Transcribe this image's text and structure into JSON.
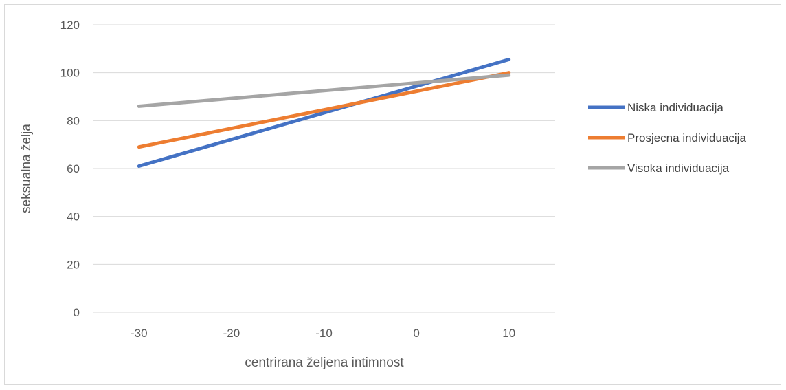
{
  "chart_data": {
    "type": "line",
    "title": "",
    "xlabel": "centrirana željena intimnost",
    "ylabel": "seksualna želja",
    "x_ticks": [
      "-30",
      "-20",
      "-10",
      "0",
      "10"
    ],
    "y_ticks": [
      "0",
      "20",
      "40",
      "60",
      "80",
      "100",
      "120"
    ],
    "xlim": [
      -35,
      15
    ],
    "ylim": [
      0,
      120
    ],
    "grid": "horizontal",
    "legend_position": "right",
    "series": [
      {
        "name": "Niska individuacija",
        "color": "#4472C4",
        "x": [
          -30,
          10
        ],
        "y": [
          61,
          105.5
        ]
      },
      {
        "name": "Prosjecna individuacija",
        "color": "#ED7D31",
        "x": [
          -30,
          10
        ],
        "y": [
          69,
          100
        ]
      },
      {
        "name": "Visoka individuacija",
        "color": "#A5A5A5",
        "x": [
          -30,
          10
        ],
        "y": [
          86,
          99
        ]
      }
    ]
  }
}
